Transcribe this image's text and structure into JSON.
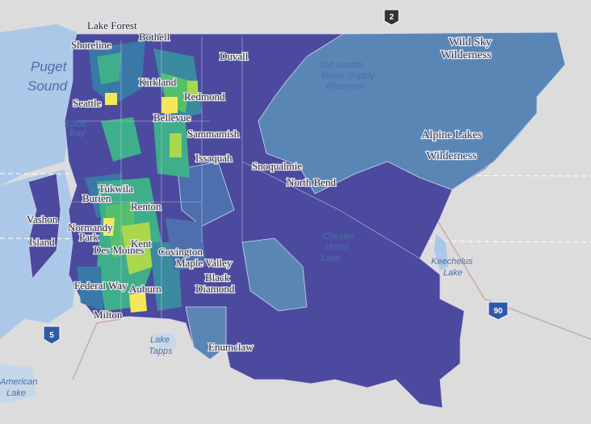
{
  "map": {
    "place_labels": [
      "Lake Forest",
      "Bothell",
      "Shoreline",
      "Kirkland",
      "Redmond",
      "Duvall",
      "Seattle",
      "Bellevue",
      "Sammamish",
      "Issaquah",
      "Snoqualmie",
      "North Bend",
      "Vashon",
      "Island",
      "Burien",
      "Tukwila",
      "Renton",
      "Normandy",
      "Park",
      "Des Moines",
      "Kent",
      "Covington",
      "Maple Valley",
      "Black",
      "Diamond",
      "Federal Way",
      "Auburn",
      "Milton",
      "Enumclaw"
    ],
    "water_labels": [
      "Puget",
      "Sound",
      "Elliott",
      "Bay",
      "Tolt-Seattle",
      "Water Supply",
      "Reservoir",
      "Chester",
      "Morse",
      "Lake",
      "Keechelus",
      "Lake",
      "Lake",
      "Tapps",
      "American",
      "Lake"
    ],
    "area_labels": [
      "Wild Sky",
      "Wilderness",
      "Alpine Lakes",
      "Wilderness"
    ],
    "shields": [
      "2",
      "5",
      "90"
    ]
  }
}
